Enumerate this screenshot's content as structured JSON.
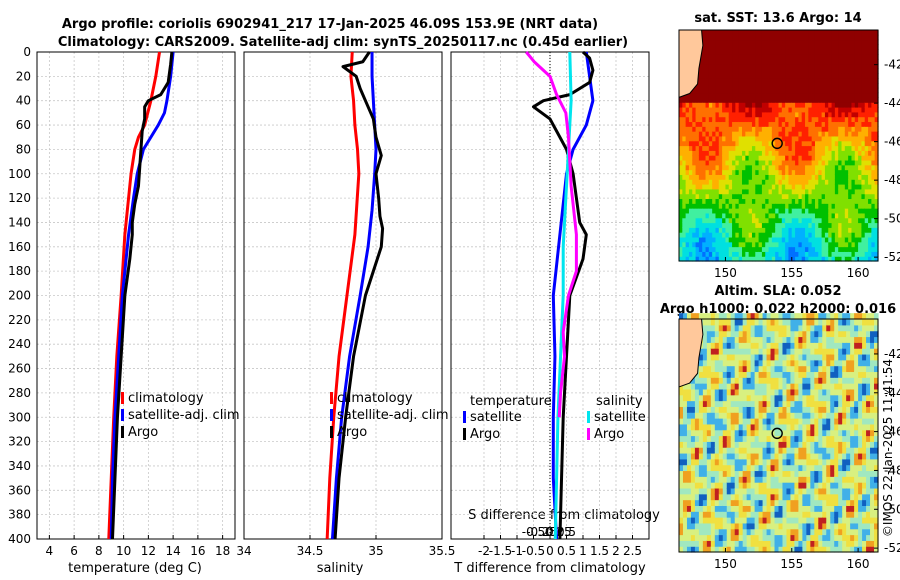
{
  "figure": {
    "title_line1": "Argo profile: coriolis 6902941_217 17-Jan-2025 46.09S 153.9E (NRT data)",
    "title_line2": "Climatology: CARS2009. Satellite-adj clim: synTS_20250117.nc (0.45d earlier)",
    "side_text": "©IMOS 22-Jan-2025 11:41:54",
    "colors": {
      "red": "#ff0000",
      "blue": "#0000ff",
      "black": "#000000",
      "cyan": "#00e5ee",
      "magenta": "#ff00ff",
      "grid": "#c8c8c8",
      "land": "#ffc89b"
    }
  },
  "chart_data": [
    {
      "id": "temperature",
      "type": "line",
      "xlabel": "temperature (deg C)",
      "xlim": [
        3,
        19
      ],
      "xticks": [
        4,
        6,
        8,
        10,
        12,
        14,
        16,
        18
      ],
      "ylim": [
        0,
        400
      ],
      "yticks": [
        0,
        20,
        40,
        60,
        80,
        100,
        120,
        140,
        160,
        180,
        200,
        220,
        240,
        260,
        280,
        300,
        320,
        340,
        360,
        380,
        400
      ],
      "legend": [
        "climatology",
        "satellite-adj. clim",
        "Argo"
      ],
      "series": [
        {
          "name": "climatology",
          "color": "red",
          "depth": [
            0,
            20,
            40,
            60,
            70,
            80,
            100,
            120,
            150,
            200,
            250,
            300,
            350,
            400
          ],
          "values": [
            12.9,
            12.6,
            12.2,
            11.7,
            11.2,
            10.9,
            10.6,
            10.4,
            10.1,
            9.8,
            9.45,
            9.2,
            9.0,
            8.8
          ]
        },
        {
          "name": "satellite-adj. clim",
          "color": "blue",
          "depth": [
            0,
            20,
            40,
            50,
            60,
            80,
            100,
            120,
            150,
            200,
            250,
            300,
            350,
            400
          ],
          "values": [
            14.0,
            13.8,
            13.5,
            13.3,
            12.8,
            11.6,
            11.1,
            10.8,
            10.4,
            9.9,
            9.6,
            9.3,
            9.1,
            9.0
          ]
        },
        {
          "name": "Argo",
          "color": "black",
          "depth": [
            0,
            10,
            25,
            35,
            40,
            45,
            55,
            65,
            80,
            95,
            110,
            125,
            140,
            150,
            170,
            200,
            250,
            300,
            350,
            400
          ],
          "values": [
            13.9,
            13.8,
            13.6,
            13.0,
            12.0,
            11.7,
            11.7,
            11.5,
            11.4,
            11.3,
            11.2,
            10.9,
            10.7,
            10.7,
            10.5,
            10.1,
            9.8,
            9.5,
            9.3,
            9.1
          ]
        }
      ]
    },
    {
      "id": "salinity",
      "type": "line",
      "xlabel": "salinity",
      "xlim": [
        34,
        35.5
      ],
      "xticks": [
        34,
        34.5,
        35,
        35.5
      ],
      "ylim": [
        0,
        400
      ],
      "legend": [
        "climatology",
        "satellite-adj. clim",
        "Argo"
      ],
      "series": [
        {
          "name": "climatology",
          "color": "red",
          "depth": [
            0,
            20,
            40,
            60,
            80,
            100,
            150,
            200,
            250,
            300,
            350,
            400
          ],
          "values": [
            34.82,
            34.81,
            34.83,
            34.84,
            34.86,
            34.87,
            34.84,
            34.78,
            34.72,
            34.68,
            34.65,
            34.63
          ]
        },
        {
          "name": "satellite-adj. clim",
          "color": "blue",
          "depth": [
            0,
            20,
            40,
            60,
            80,
            100,
            130,
            160,
            200,
            250,
            300,
            350,
            400
          ],
          "values": [
            34.97,
            34.97,
            34.98,
            34.99,
            35.0,
            34.99,
            34.97,
            34.94,
            34.88,
            34.8,
            34.74,
            34.7,
            34.67
          ]
        },
        {
          "name": "Argo",
          "color": "black",
          "depth": [
            0,
            8,
            12,
            20,
            30,
            40,
            55,
            70,
            85,
            100,
            120,
            135,
            145,
            160,
            180,
            200,
            250,
            300,
            350,
            400
          ],
          "values": [
            34.95,
            34.9,
            34.75,
            34.85,
            34.88,
            34.92,
            34.98,
            35.0,
            35.04,
            35.0,
            35.02,
            35.03,
            35.05,
            35.04,
            34.98,
            34.92,
            34.83,
            34.77,
            34.72,
            34.69
          ]
        }
      ]
    },
    {
      "id": "difference",
      "type": "line",
      "xlabel": "T difference from climatology",
      "xlabel_top": "S difference from climatology",
      "xlim": [
        -3,
        3
      ],
      "xticks": [
        -2,
        -1.5,
        -1,
        -0.5,
        0,
        0.5,
        1,
        1.5,
        2,
        2.5
      ],
      "xticklabels": [
        "-2",
        "-1.5",
        "-1",
        "-0.5",
        "0",
        "0.5",
        "1",
        "1.5",
        "2",
        "2.5"
      ],
      "top_ticks": [
        -0.5,
        -0.25,
        0,
        0.25,
        0.5
      ],
      "top_ticklabels": [
        "-0.5",
        "-0.25",
        "0",
        "0.25",
        "0.5"
      ],
      "ylim": [
        0,
        400
      ],
      "legend": [
        "temperature",
        "satellite",
        "Argo",
        "salinity",
        "satellite",
        "Argo"
      ],
      "series": [
        {
          "name": "temperature satellite",
          "color": "blue",
          "depth": [
            0,
            20,
            40,
            60,
            80,
            100,
            150,
            200,
            250,
            300,
            350,
            400
          ],
          "values": [
            1.1,
            1.2,
            1.3,
            1.1,
            0.7,
            0.5,
            0.3,
            0.1,
            0.15,
            0.1,
            0.1,
            0.2
          ]
        },
        {
          "name": "temperature Argo",
          "color": "black",
          "depth": [
            0,
            5,
            15,
            25,
            35,
            40,
            45,
            55,
            65,
            80,
            100,
            120,
            140,
            150,
            170,
            200,
            250,
            300,
            350,
            400
          ],
          "values": [
            1.0,
            1.2,
            1.3,
            1.2,
            0.6,
            -0.2,
            -0.5,
            0.0,
            0.2,
            0.5,
            0.7,
            0.8,
            0.9,
            1.1,
            1.0,
            0.6,
            0.5,
            0.4,
            0.35,
            0.3
          ]
        },
        {
          "name": "salinity satellite",
          "color": "cyan",
          "scale": 0.25,
          "depth": [
            0,
            40,
            80,
            120,
            160,
            200,
            250,
            300,
            350,
            400
          ],
          "values": [
            0.15,
            0.16,
            0.14,
            0.12,
            0.1,
            0.1,
            0.08,
            0.06,
            0.05,
            0.04
          ]
        },
        {
          "name": "salinity Argo",
          "color": "magenta",
          "scale": 0.25,
          "depth": [
            0,
            8,
            20,
            35,
            50,
            70,
            90,
            110,
            130,
            150,
            180,
            200,
            230,
            250,
            280,
            300
          ],
          "values": [
            -0.18,
            -0.12,
            0.0,
            0.05,
            0.12,
            0.14,
            0.15,
            0.16,
            0.18,
            0.2,
            0.2,
            0.14,
            0.1,
            0.11,
            0.08,
            0.07
          ]
        }
      ]
    },
    {
      "id": "sst_map",
      "type": "heatmap",
      "title": "sat. SST: 13.6 Argo: 14",
      "xlim": [
        146.5,
        161.5
      ],
      "ylim": [
        -52.2,
        -40.2
      ],
      "xticks": [
        150,
        155,
        160
      ],
      "yticks": [
        -42,
        -44,
        -46,
        -48,
        -50,
        -52
      ],
      "float_lon": 153.9,
      "float_lat": -46.09
    },
    {
      "id": "sla_map",
      "type": "heatmap",
      "title_line1": "Altim. SLA: 0.052",
      "title_line2": "Argo h1000: 0.022 h2000: 0.016",
      "xlim": [
        146.5,
        161.5
      ],
      "ylim": [
        -52.2,
        -40.2
      ],
      "xticks": [
        150,
        155,
        160
      ],
      "yticks": [
        -42,
        -44,
        -46,
        -48,
        -50,
        -52
      ],
      "float_lon": 153.9,
      "float_lat": -46.09
    }
  ]
}
